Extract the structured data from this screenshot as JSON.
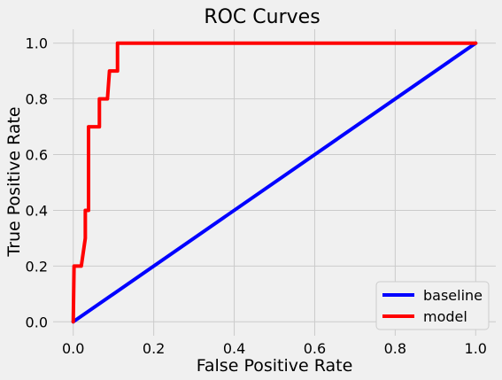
{
  "chart_data": {
    "type": "line",
    "title": "ROC Curves",
    "xlabel": "False Positive Rate",
    "ylabel": "True Positive Rate",
    "xlim": [
      -0.05,
      1.05
    ],
    "ylim": [
      -0.05,
      1.05
    ],
    "xticks": [
      "0.0",
      "0.2",
      "0.4",
      "0.6",
      "0.8",
      "1.0"
    ],
    "yticks": [
      "0.0",
      "0.2",
      "0.4",
      "0.6",
      "0.8",
      "1.0"
    ],
    "xtick_values": [
      0,
      0.2,
      0.4,
      0.6,
      0.8,
      1.0
    ],
    "ytick_values": [
      0,
      0.2,
      0.4,
      0.6,
      0.8,
      1.0
    ],
    "grid": true,
    "legend_position": "bottom-right",
    "series": [
      {
        "name": "baseline",
        "color": "#0000ff",
        "x": [
          0,
          1
        ],
        "y": [
          0,
          1
        ]
      },
      {
        "name": "model",
        "color": "#ff0000",
        "x": [
          0,
          0.002,
          0.02,
          0.03,
          0.03,
          0.038,
          0.038,
          0.047,
          0.055,
          0.065,
          0.065,
          0.075,
          0.085,
          0.09,
          0.1,
          0.11,
          0.11,
          1.0
        ],
        "y": [
          0,
          0.2,
          0.2,
          0.3,
          0.4,
          0.4,
          0.7,
          0.7,
          0.7,
          0.7,
          0.8,
          0.8,
          0.8,
          0.9,
          0.9,
          0.9,
          1.0,
          1.0
        ]
      }
    ]
  }
}
